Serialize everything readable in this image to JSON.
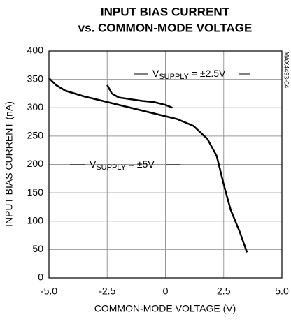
{
  "chart_data": {
    "type": "line",
    "title": [
      "INPUT BIAS CURRENT",
      "vs. COMMON-MODE VOLTAGE"
    ],
    "x_label": "COMMON-MODE VOLTAGE (V)",
    "y_label": "INPUT BIAS CURRENT (nA)",
    "side_label": "MAX4493-04",
    "xlim": [
      -5,
      5
    ],
    "ylim": [
      0,
      400
    ],
    "xticks": [
      {
        "value": -5,
        "label": "-5.0"
      },
      -2.5,
      0,
      2.5,
      {
        "value": 5,
        "label": "5.0"
      }
    ],
    "yticks": [
      0,
      50,
      100,
      150,
      200,
      250,
      300,
      350,
      400
    ],
    "grid": true,
    "series": [
      {
        "color": "#000000",
        "x": [
          -5,
          -4.7,
          -4.3,
          -3.5,
          -2.5,
          -1.5,
          -0.5,
          0.5,
          1.2,
          1.8,
          2.2,
          2.5,
          2.8,
          3.2,
          3.5
        ],
        "values": [
          352,
          340,
          330,
          320,
          310,
          300,
          290,
          280,
          268,
          245,
          215,
          165,
          120,
          80,
          45
        ]
      },
      {
        "color": "#000000",
        "x": [
          -2.5,
          -2.3,
          -2,
          -1.5,
          -1,
          -0.5,
          0,
          0.3
        ],
        "values": [
          340,
          325,
          318,
          315,
          312,
          310,
          305,
          300
        ]
      }
    ],
    "annotations": [
      {
        "parts": [
          "V",
          "SUPPLY",
          " = ±2.5V"
        ]
      },
      {
        "parts": [
          "V",
          "SUPPLY",
          " = ±5V"
        ]
      }
    ]
  }
}
